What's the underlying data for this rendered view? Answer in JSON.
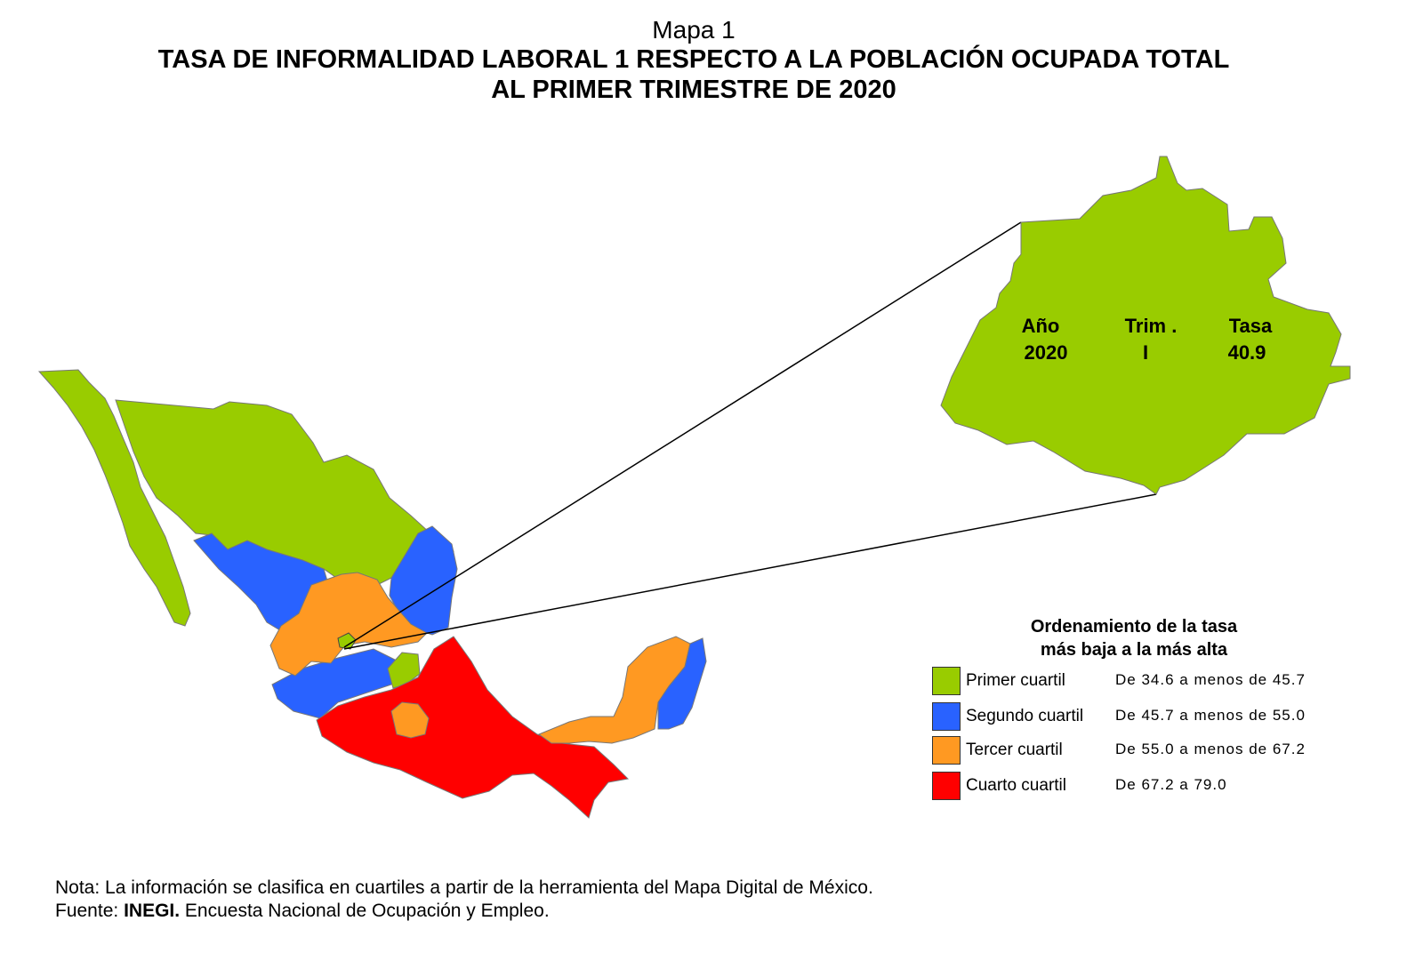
{
  "header": {
    "map_number": "Mapa 1",
    "title_line1": "TASA DE INFORMALIDAD LABORAL 1 RESPECTO A LA POBLACIÓN OCUPADA TOTAL",
    "title_line2": "AL PRIMER TRIMESTRE DE 2020"
  },
  "inset": {
    "year_label": "Año",
    "year_value": "2020",
    "quarter_label": "Trim .",
    "quarter_value": "I",
    "rate_label": "Tasa",
    "rate_value": "40.9",
    "fill_color": "#99cc00"
  },
  "legend": {
    "title_line1": "Ordenamiento de la tasa",
    "title_line2": "más baja a la más alta",
    "items": [
      {
        "label": "Primer cuartil",
        "range": "De 34.6 a menos de 45.7",
        "color": "#99cc00"
      },
      {
        "label": "Segundo cuartil",
        "range": "De 45.7 a menos de 55.0",
        "color": "#2962ff"
      },
      {
        "label": "Tercer cuartil",
        "range": "De 55.0 a menos de 67.2",
        "color": "#ff9922"
      },
      {
        "label": "Cuarto cuartil",
        "range": "De 67.2 a 79.0",
        "color": "#ff0000"
      }
    ]
  },
  "notes": {
    "note": "Nota: La información se clasifica en cuartiles a partir de la herramienta del Mapa Digital de México.",
    "source_prefix": "Fuente: ",
    "source_org": "INEGI.",
    "source_text": " Encuesta Nacional de Ocupación y Empleo."
  }
}
